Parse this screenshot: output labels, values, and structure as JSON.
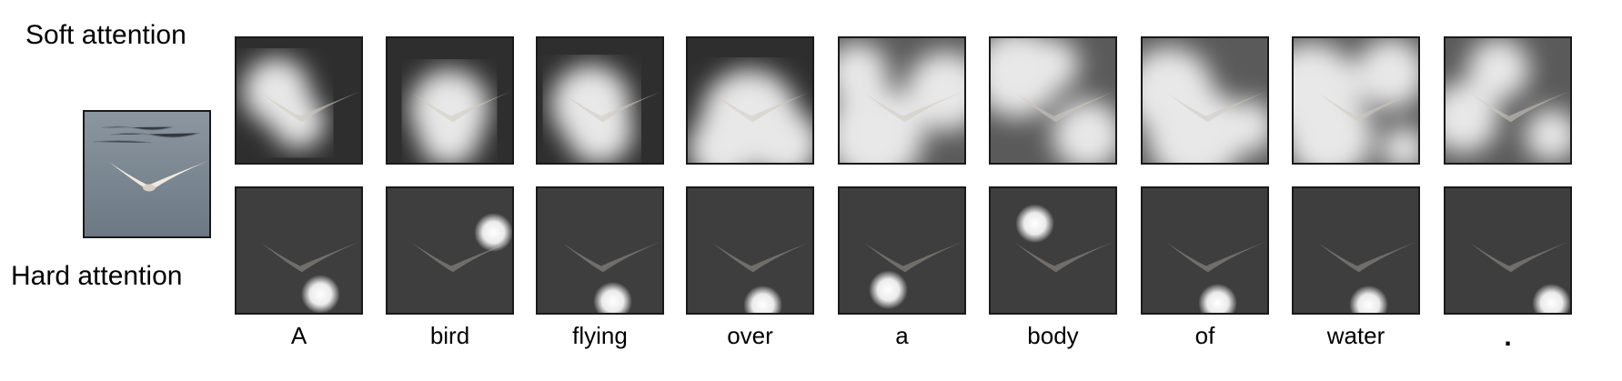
{
  "labels": {
    "soft": "Soft attention",
    "hard": "Hard attention"
  },
  "words": [
    "A",
    "bird",
    "flying",
    "over",
    "a",
    "body",
    "of",
    "water",
    "."
  ],
  "colors": {
    "water": "#78838e",
    "panel_dark": "#2a2a2a",
    "hard_bg": "#3d3d3d",
    "gull": "#f2eee8"
  },
  "icons": [
    "seagull-photo"
  ]
}
